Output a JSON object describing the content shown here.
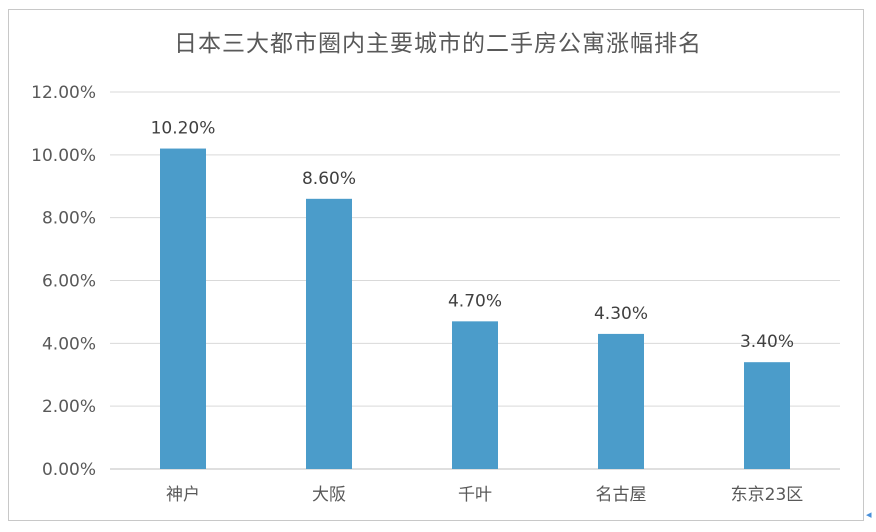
{
  "chart_data": {
    "type": "bar",
    "title": "日本三大都市圈内主要城市的二手房公寓涨幅排名",
    "categories": [
      "神户",
      "大阪",
      "千叶",
      "名古屋",
      "东京23区"
    ],
    "values": [
      10.2,
      8.6,
      4.7,
      4.3,
      3.4
    ],
    "data_labels": [
      "10.20%",
      "8.60%",
      "4.70%",
      "4.30%",
      "3.40%"
    ],
    "yticks": [
      0,
      2,
      4,
      6,
      8,
      10,
      12
    ],
    "ytick_labels": [
      "0.00%",
      "2.00%",
      "4.00%",
      "6.00%",
      "8.00%",
      "10.00%",
      "12.00%"
    ],
    "ylim": [
      0,
      12
    ],
    "grid": true,
    "bar_color": "#4b9cca",
    "legend": "none"
  }
}
